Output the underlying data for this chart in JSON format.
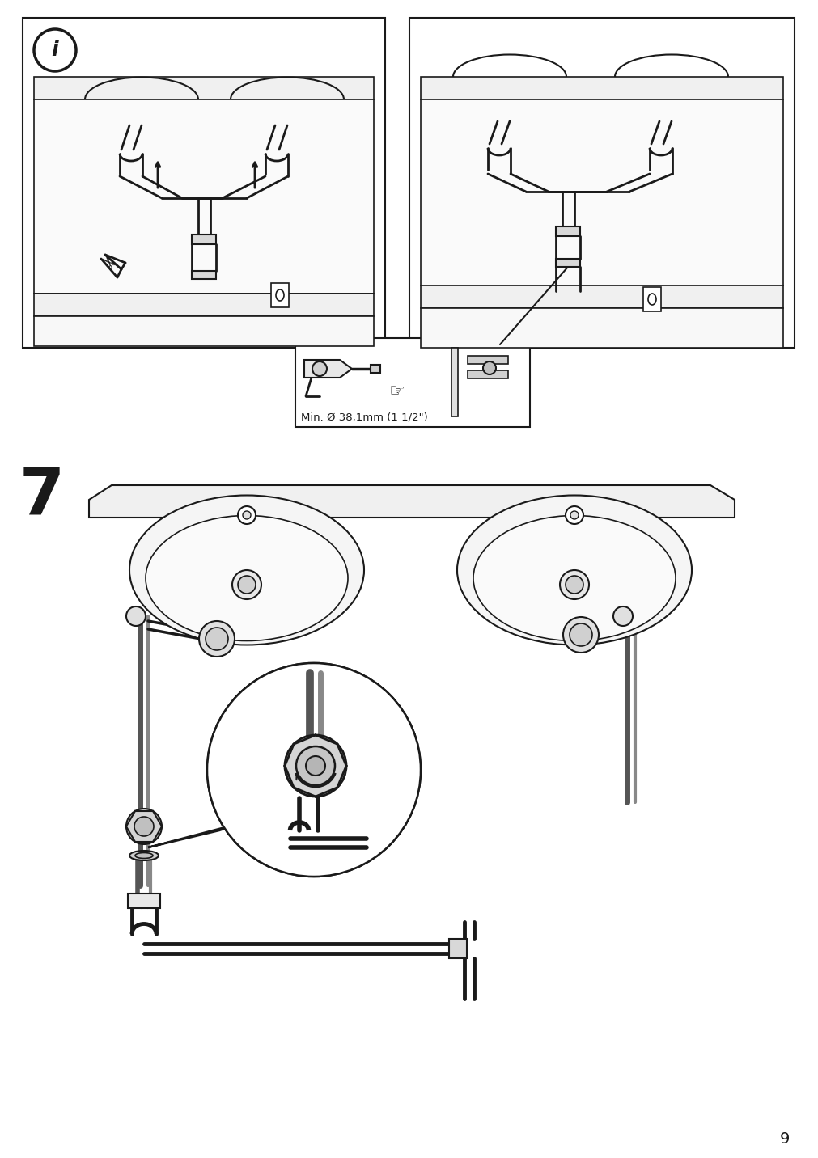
{
  "page_number": "9",
  "background_color": "#ffffff",
  "line_color": "#1a1a1a",
  "step_number": "7",
  "min_diameter_text": "Min. Ø 38,1mm (1 1/2\")",
  "fig_width": 10.12,
  "fig_height": 14.32
}
